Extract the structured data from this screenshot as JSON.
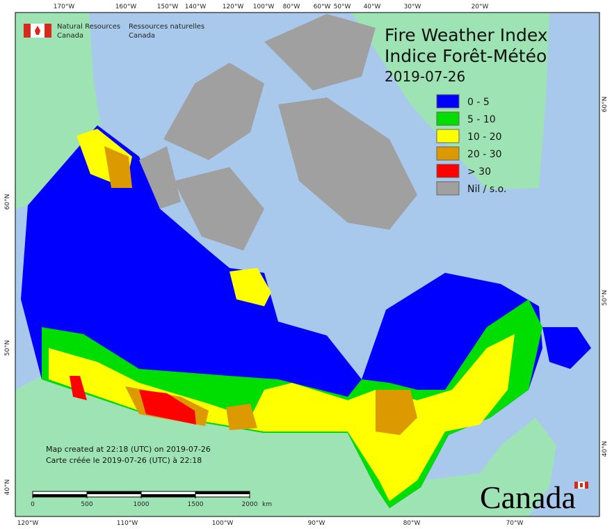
{
  "header": {
    "agency_en": [
      "Natural Resources",
      "Canada"
    ],
    "agency_fr": [
      "Ressources naturelles",
      "Canada"
    ],
    "title": "Fire Weather Index",
    "title_fr": "Indice Forêt-Météo",
    "date": "2019-07-26"
  },
  "legend": [
    {
      "label": "0 - 5",
      "color": "#0000ff"
    },
    {
      "label": "5 - 10",
      "color": "#00dd00"
    },
    {
      "label": "10 - 20",
      "color": "#ffff00"
    },
    {
      "label": "20 - 30",
      "color": "#dd9900"
    },
    {
      "label": "> 30",
      "color": "#ff0000"
    },
    {
      "label": "Nil / s.o.",
      "color": "#a0a0a0"
    }
  ],
  "graticule": {
    "top": [
      "170°W",
      "160°W",
      "150°W",
      "140°W",
      "120°W",
      "100°W",
      "80°W",
      "60°W",
      "50°W",
      "40°W",
      "30°W",
      "20°W"
    ],
    "bottom": [
      "120°W",
      "110°W",
      "100°W",
      "90°W",
      "80°W",
      "70°W"
    ],
    "left": [
      "60°N",
      "50°N",
      "40°N"
    ],
    "right": [
      "60°N",
      "50°N",
      "40°N"
    ]
  },
  "notes": [
    "Map created at 22:18 (UTC) on 2019-07-26",
    "Carte créée le 2019-07-26 (UTC) à 22:18"
  ],
  "scale_bar": {
    "ticks": [
      0,
      500,
      1000,
      1500,
      2000
    ],
    "unit": "km"
  },
  "wordmark": "Canada"
}
